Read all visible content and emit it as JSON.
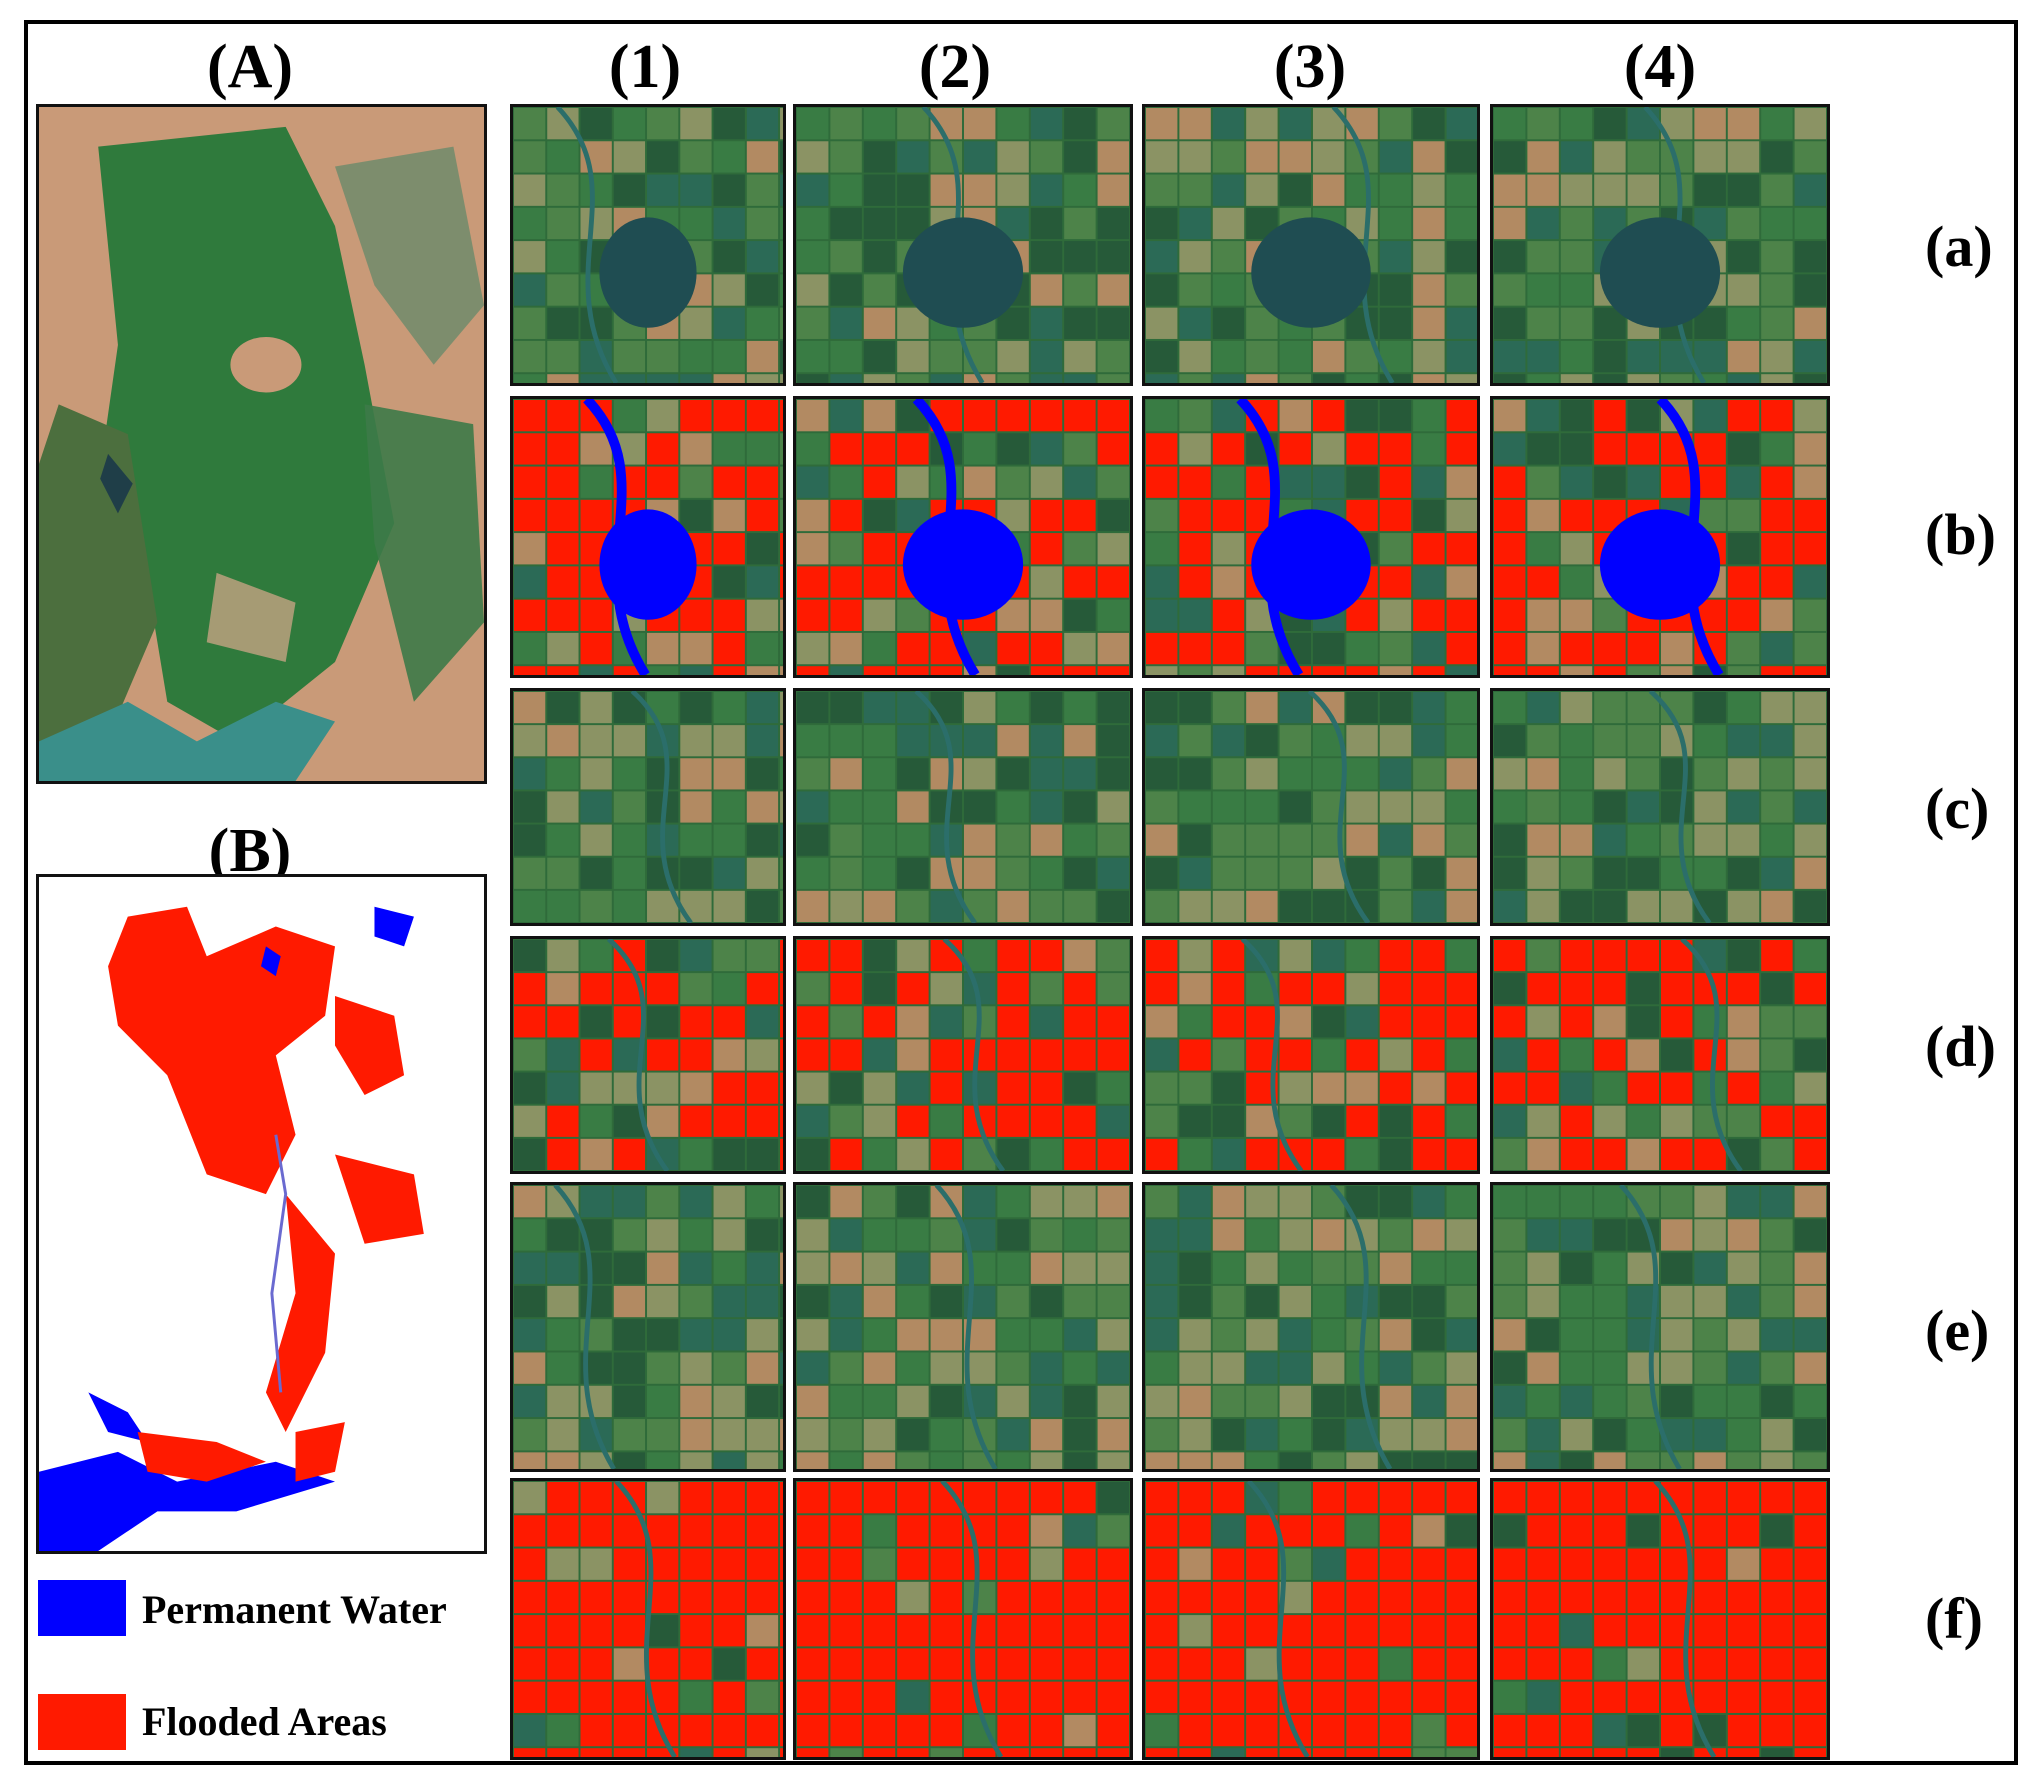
{
  "panel_labels": {
    "A": "(A)",
    "B": "(B)"
  },
  "column_labels": [
    "(1)",
    "(2)",
    "(3)",
    "(4)"
  ],
  "row_labels": [
    "(a)",
    "(b)",
    "(c)",
    "(d)",
    "(e)",
    "(f)"
  ],
  "legend": [
    {
      "label": "Permanent Water",
      "color": "#0000ff"
    },
    {
      "label": "Flooded Areas",
      "color": "#ff1a00"
    }
  ],
  "colors": {
    "vegetation": "#2f6b3a",
    "dry_land": "#c98f6a",
    "water": "#0000ff",
    "flood": "#ff1a00"
  }
}
